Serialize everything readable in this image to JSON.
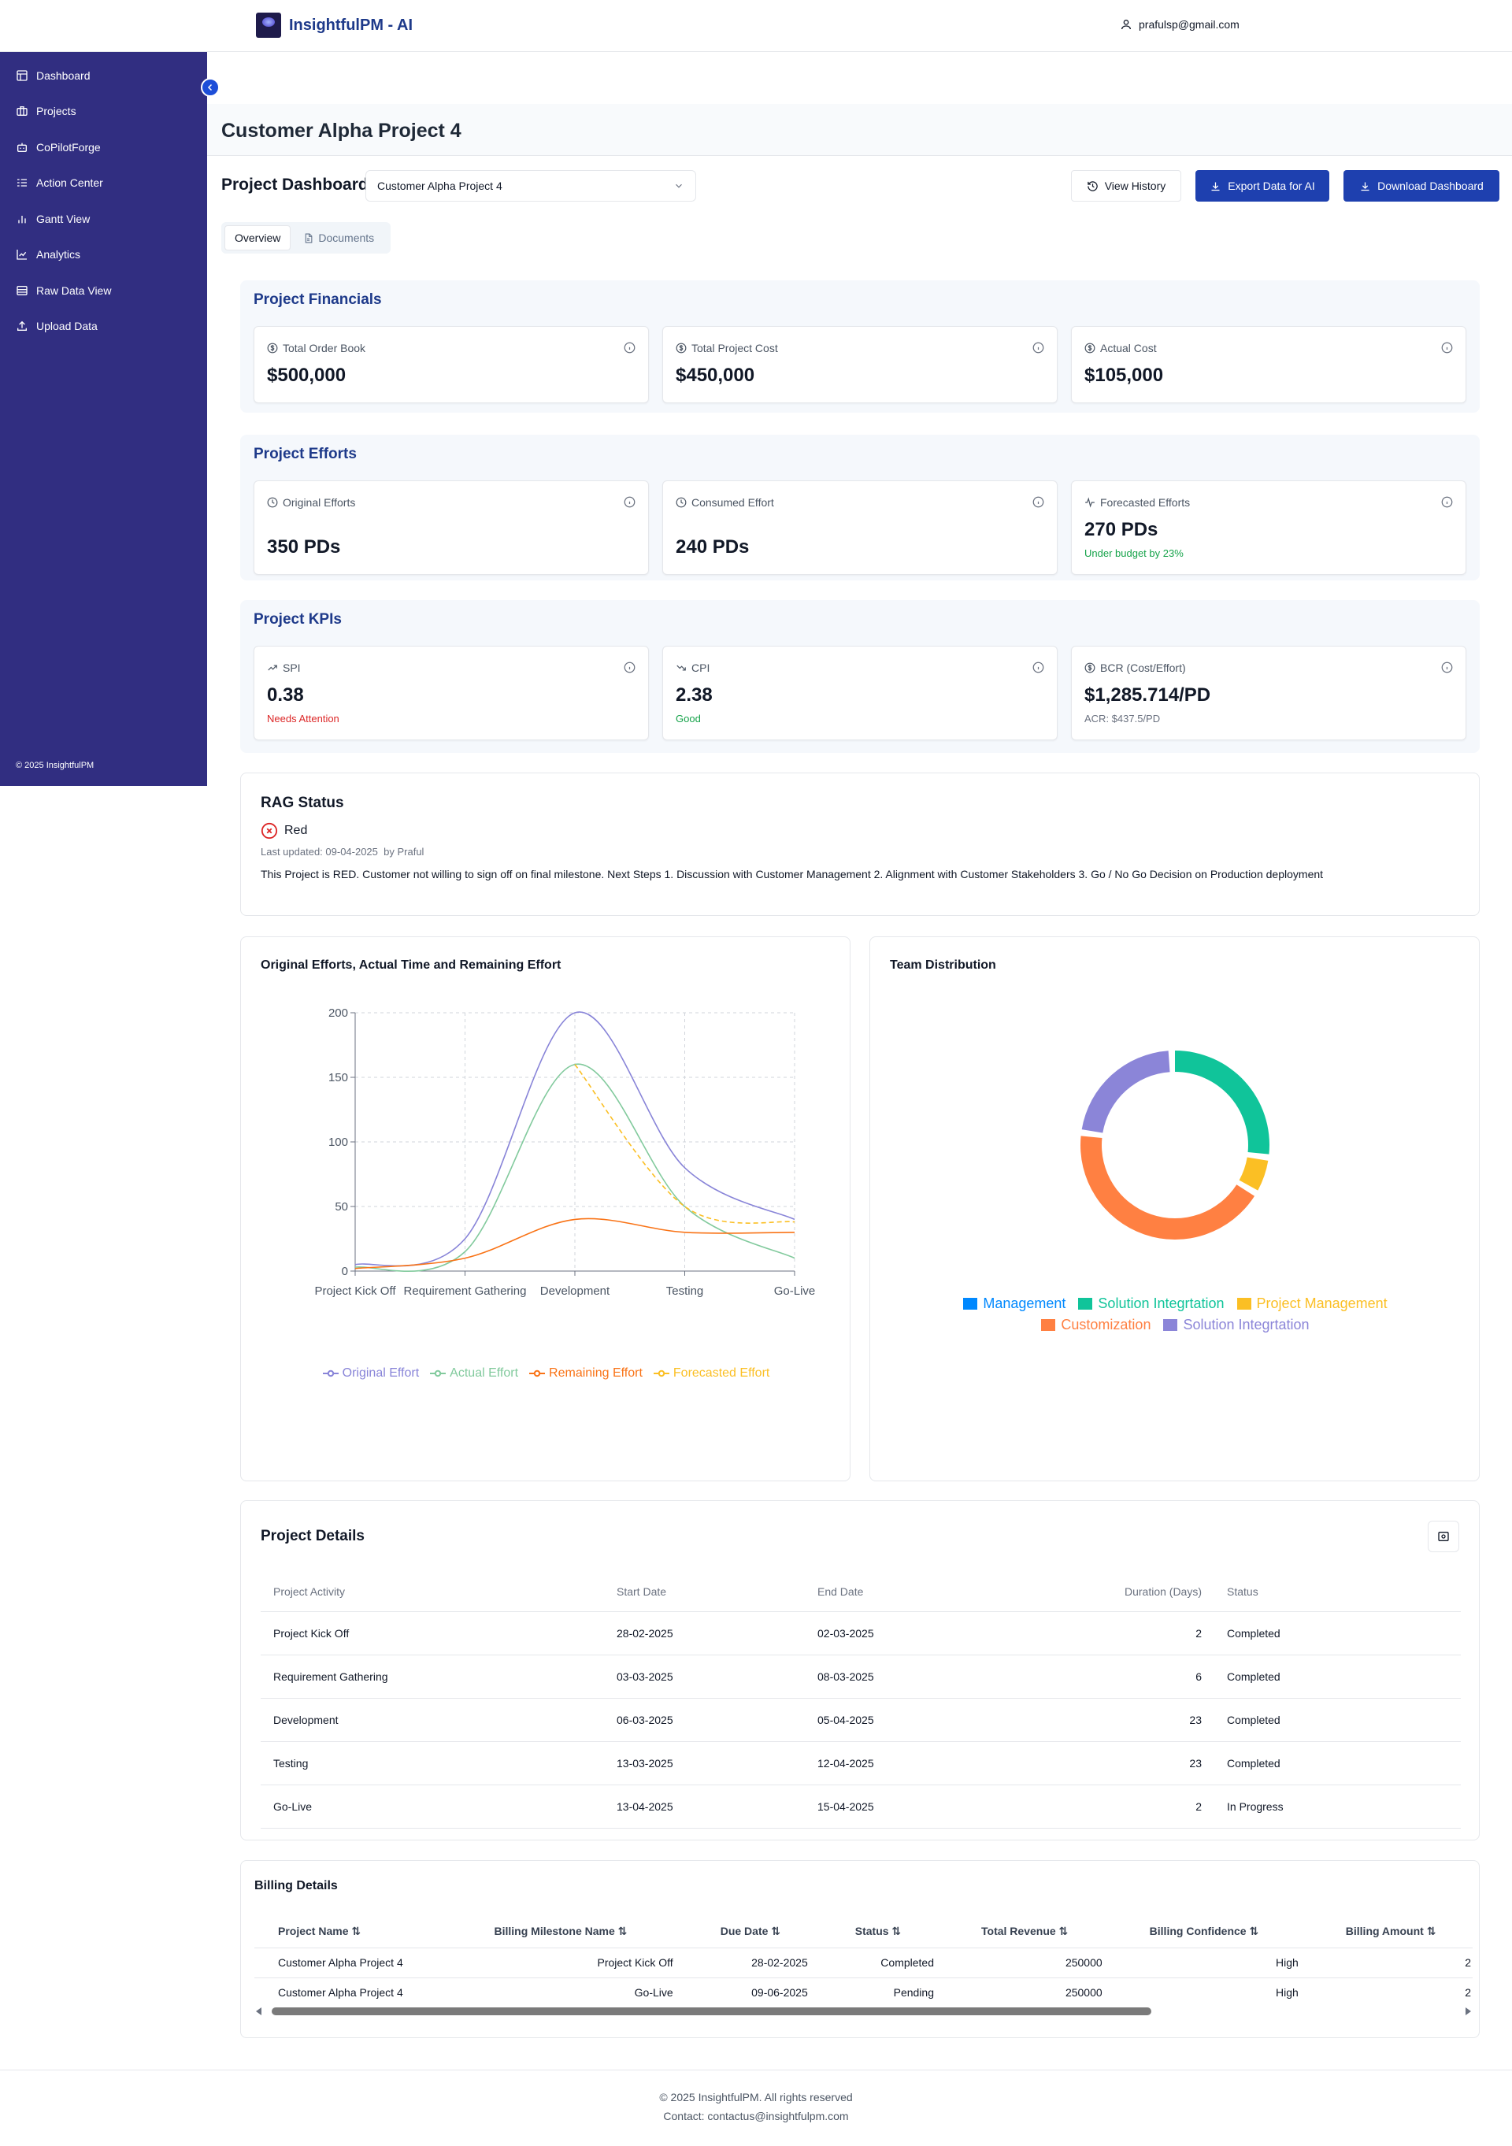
{
  "header": {
    "brand": "InsightfulPM - AI",
    "user_email": "prafulsp@gmail.com"
  },
  "sidebar": {
    "items": [
      {
        "label": "Dashboard",
        "icon": "dashboard-icon"
      },
      {
        "label": "Projects",
        "icon": "briefcase-icon"
      },
      {
        "label": "CoPilotForge",
        "icon": "bot-icon"
      },
      {
        "label": "Action Center",
        "icon": "list-icon"
      },
      {
        "label": "Gantt View",
        "icon": "bar-chart-icon"
      },
      {
        "label": "Analytics",
        "icon": "line-chart-icon"
      },
      {
        "label": "Raw Data View",
        "icon": "database-icon"
      },
      {
        "label": "Upload Data",
        "icon": "upload-icon"
      }
    ],
    "footer": "© 2025 InsightfulPM"
  },
  "page": {
    "title": "Customer Alpha Project 4"
  },
  "dashboard": {
    "label": "Project Dashboard",
    "selected_project": "Customer Alpha Project 4",
    "buttons": {
      "history": "View History",
      "export": "Export Data for AI",
      "download": "Download Dashboard"
    },
    "tabs": [
      "Overview",
      "Documents"
    ]
  },
  "financials": {
    "title": "Project Financials",
    "cards": [
      {
        "label": "Total Order Book",
        "value": "$500,000"
      },
      {
        "label": "Total Project Cost",
        "value": "$450,000"
      },
      {
        "label": "Actual Cost",
        "value": "$105,000"
      }
    ]
  },
  "efforts": {
    "title": "Project Efforts",
    "cards": [
      {
        "label": "Original Efforts",
        "value": "350 PDs"
      },
      {
        "label": "Consumed Effort",
        "value": "240 PDs"
      },
      {
        "label": "Forecasted Efforts",
        "value": "270 PDs",
        "sub": "Under budget by 23%"
      }
    ]
  },
  "kpis": {
    "title": "Project KPIs",
    "cards": [
      {
        "label": "SPI",
        "value": "0.38",
        "sub": "Needs Attention"
      },
      {
        "label": "CPI",
        "value": "2.38",
        "sub": "Good"
      },
      {
        "label": "BCR (Cost/Effort)",
        "value": "$1,285.714/PD",
        "sub": "ACR: $437.5/PD"
      }
    ]
  },
  "rag": {
    "title": "RAG Status",
    "status": "Red",
    "updated": "Last updated: 09-04-2025",
    "by": "by Praful",
    "note": "This Project is RED. Customer not willing to sign off on final milestone. Next Steps 1. Discussion with Customer Management 2. Alignment with Customer Stakeholders 3. Go / No Go Decision on Production deployment"
  },
  "chart_data": [
    {
      "type": "line",
      "title": "Original Efforts, Actual Time and Remaining Effort",
      "categories": [
        "Project Kick Off",
        "Requirement Gathering",
        "Development",
        "Testing",
        "Go-Live"
      ],
      "yticks": [
        0,
        50,
        100,
        150,
        200
      ],
      "ylim": [
        0,
        200
      ],
      "grid": true,
      "legend": "bottom",
      "series": [
        {
          "name": "Original Effort",
          "color": "#8884d8",
          "values": [
            5,
            25,
            200,
            80,
            40
          ],
          "dashed": false
        },
        {
          "name": "Actual Effort",
          "color": "#82ca9d",
          "values": [
            3,
            15,
            160,
            50,
            10
          ],
          "dashed": false
        },
        {
          "name": "Remaining Effort",
          "color": "#f97316",
          "values": [
            2,
            10,
            40,
            30,
            30
          ],
          "dashed": false
        },
        {
          "name": "Forecasted Effort",
          "color": "#fbbf24",
          "values": [
            null,
            null,
            160,
            50,
            38
          ],
          "dashed": true
        }
      ]
    },
    {
      "type": "pie",
      "title": "Team Distribution",
      "legend": "bottom",
      "slices": [
        {
          "name": "Management",
          "value": 0,
          "color": "#0088fe"
        },
        {
          "name": "Solution Integrtation",
          "value": 25,
          "color": "#10c49a"
        },
        {
          "name": "Project Management",
          "value": 5,
          "color": "#fbbf24"
        },
        {
          "name": "Customization",
          "value": 40,
          "color": "#ff8042"
        },
        {
          "name": "Solution Integrtation",
          "value": 20,
          "color": "#8b85d8"
        }
      ]
    }
  ],
  "project_details": {
    "title": "Project Details",
    "columns": [
      "Project Activity",
      "Start Date",
      "End Date",
      "Duration (Days)",
      "Status"
    ],
    "rows": [
      [
        "Project Kick Off",
        "28-02-2025",
        "02-03-2025",
        "2",
        "Completed"
      ],
      [
        "Requirement Gathering",
        "03-03-2025",
        "08-03-2025",
        "6",
        "Completed"
      ],
      [
        "Development",
        "06-03-2025",
        "05-04-2025",
        "23",
        "Completed"
      ],
      [
        "Testing",
        "13-03-2025",
        "12-04-2025",
        "23",
        "Completed"
      ],
      [
        "Go-Live",
        "13-04-2025",
        "15-04-2025",
        "2",
        "In Progress"
      ]
    ]
  },
  "billing": {
    "title": "Billing Details",
    "columns": [
      "Project Name ⇅",
      "Billing Milestone Name ⇅",
      "Due Date ⇅",
      "Status ⇅",
      "Total Revenue ⇅",
      "Billing Confidence ⇅",
      "Billing Amount ⇅"
    ],
    "rows": [
      [
        "Customer Alpha Project 4",
        "Project Kick Off",
        "28-02-2025",
        "Completed",
        "250000",
        "High",
        "2"
      ],
      [
        "Customer Alpha Project 4",
        "Go-Live",
        "09-06-2025",
        "Pending",
        "250000",
        "High",
        "2"
      ]
    ]
  },
  "footer": {
    "copyright": "© 2025 InsightfulPM. All rights reserved",
    "contact": "Contact: contactus@insightfulpm.com"
  }
}
